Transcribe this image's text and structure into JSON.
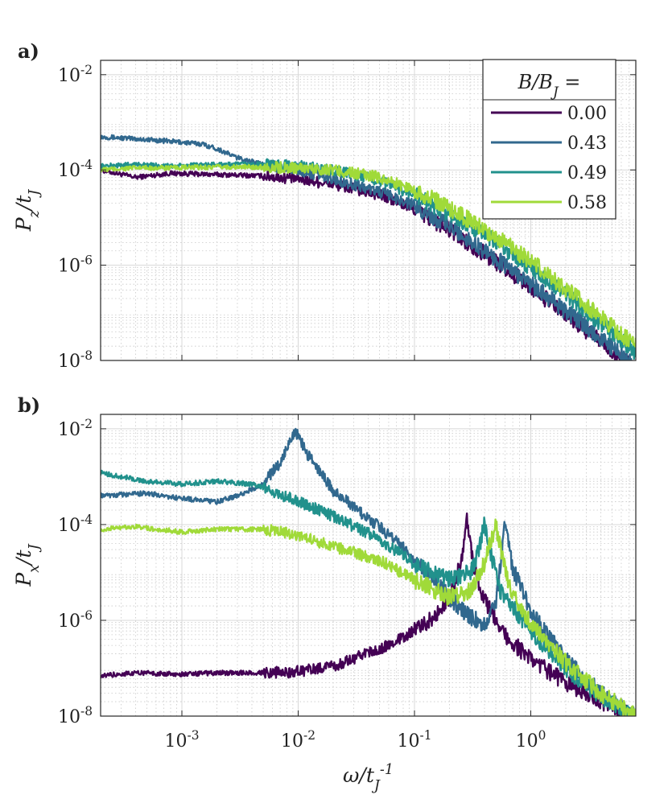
{
  "chart_data": [
    {
      "type": "line",
      "panel_label": "a)",
      "ylabel": "P_z/t_J",
      "x_scale": "log",
      "y_scale": "log",
      "xlim": [
        0.0002,
        8
      ],
      "ylim": [
        1e-08,
        0.02
      ],
      "x_ticks": [
        0.001,
        0.01,
        0.1,
        1
      ],
      "x_tick_labels": [
        "",
        "",
        "",
        ""
      ],
      "y_ticks": [
        1e-08,
        1e-06,
        0.0001,
        0.01
      ],
      "y_tick_labels": [
        "10^-8",
        "10^-6",
        "10^-4",
        "10^-2"
      ],
      "grid": true,
      "legend": {
        "title": "B/B_J =",
        "position": "top-right",
        "entries": [
          "0.00",
          "0.43",
          "0.49",
          "0.58"
        ]
      },
      "series": [
        {
          "name": "0.00",
          "color": "#440154",
          "points": [
            [
              0.0002,
              0.0001
            ],
            [
              0.0004,
              7e-05
            ],
            [
              0.0008,
              8.5e-05
            ],
            [
              0.002,
              8e-05
            ],
            [
              0.005,
              7.5e-05
            ],
            [
              0.01,
              6.5e-05
            ],
            [
              0.02,
              5e-05
            ],
            [
              0.05,
              3e-05
            ],
            [
              0.1,
              1.5e-05
            ],
            [
              0.2,
              5.5e-06
            ],
            [
              0.5,
              1.2e-06
            ],
            [
              1,
              3.5e-07
            ],
            [
              2,
              9e-08
            ],
            [
              4,
              2.5e-08
            ],
            [
              8,
              6e-09
            ]
          ]
        },
        {
          "name": "0.43",
          "color": "#31688e",
          "points": [
            [
              0.0002,
              0.0005
            ],
            [
              0.0004,
              0.00045
            ],
            [
              0.0008,
              0.0004
            ],
            [
              0.0015,
              0.00035
            ],
            [
              0.002,
              0.00028
            ],
            [
              0.003,
              0.00018
            ],
            [
              0.005,
              0.00013
            ],
            [
              0.01,
              0.0001
            ],
            [
              0.02,
              6.5e-05
            ],
            [
              0.05,
              3.5e-05
            ],
            [
              0.1,
              1.8e-05
            ],
            [
              0.2,
              6.5e-06
            ],
            [
              0.5,
              1.4e-06
            ],
            [
              1,
              4e-07
            ],
            [
              2,
              1.1e-07
            ],
            [
              4,
              3e-08
            ],
            [
              8,
              7e-09
            ]
          ]
        },
        {
          "name": "0.49",
          "color": "#21918c",
          "points": [
            [
              0.0002,
              0.00012
            ],
            [
              0.0004,
              0.00013
            ],
            [
              0.0008,
              0.00012
            ],
            [
              0.002,
              0.00013
            ],
            [
              0.005,
              0.00013
            ],
            [
              0.01,
              0.00012
            ],
            [
              0.02,
              0.0001
            ],
            [
              0.05,
              6e-05
            ],
            [
              0.1,
              3e-05
            ],
            [
              0.2,
              1.2e-05
            ],
            [
              0.5,
              3e-06
            ],
            [
              1,
              9e-07
            ],
            [
              2,
              2.5e-07
            ],
            [
              4,
              6e-08
            ],
            [
              8,
              1.5e-08
            ]
          ]
        },
        {
          "name": "0.58",
          "color": "#a0da39",
          "points": [
            [
              0.0002,
              0.0001
            ],
            [
              0.0004,
              0.00011
            ],
            [
              0.0008,
              0.00011
            ],
            [
              0.002,
              0.000115
            ],
            [
              0.005,
              0.000115
            ],
            [
              0.01,
              0.00011
            ],
            [
              0.02,
              0.0001
            ],
            [
              0.05,
              7e-05
            ],
            [
              0.1,
              3.8e-05
            ],
            [
              0.2,
              1.6e-05
            ],
            [
              0.5,
              4e-06
            ],
            [
              1,
              1.2e-06
            ],
            [
              2,
              3.2e-07
            ],
            [
              4,
              8e-08
            ],
            [
              8,
              2e-08
            ]
          ]
        }
      ]
    },
    {
      "type": "line",
      "panel_label": "b)",
      "ylabel": "P_x/t_J",
      "xlabel": "ω/t_J^-1",
      "x_scale": "log",
      "y_scale": "log",
      "xlim": [
        0.0002,
        8
      ],
      "ylim": [
        1e-08,
        0.02
      ],
      "x_ticks": [
        0.001,
        0.01,
        0.1,
        1
      ],
      "x_tick_labels": [
        "10^-3",
        "10^-2",
        "10^-1",
        "10^0"
      ],
      "y_ticks": [
        1e-08,
        1e-06,
        0.0001,
        0.01
      ],
      "y_tick_labels": [
        "10^-8",
        "10^-6",
        "10^-4",
        "10^-2"
      ],
      "grid": true,
      "series": [
        {
          "name": "0.00",
          "color": "#440154",
          "points": [
            [
              0.0002,
              7e-08
            ],
            [
              0.0004,
              8e-08
            ],
            [
              0.001,
              7.5e-08
            ],
            [
              0.002,
              8e-08
            ],
            [
              0.005,
              8e-08
            ],
            [
              0.01,
              8.5e-08
            ],
            [
              0.02,
              1.1e-07
            ],
            [
              0.05,
              2.5e-07
            ],
            [
              0.1,
              6e-07
            ],
            [
              0.15,
              1.2e-06
            ],
            [
              0.2,
              3e-06
            ],
            [
              0.25,
              1.5e-05
            ],
            [
              0.28,
              0.00013
            ],
            [
              0.32,
              1.5e-05
            ],
            [
              0.4,
              2.5e-06
            ],
            [
              0.6,
              5e-07
            ],
            [
              1,
              1.5e-07
            ],
            [
              2,
              5e-08
            ],
            [
              4,
              2e-08
            ],
            [
              8,
              1e-08
            ]
          ]
        },
        {
          "name": "0.43",
          "color": "#31688e",
          "points": [
            [
              0.0002,
              0.0004
            ],
            [
              0.0005,
              0.00045
            ],
            [
              0.001,
              0.00035
            ],
            [
              0.002,
              0.0003
            ],
            [
              0.003,
              0.0004
            ],
            [
              0.005,
              0.0007
            ],
            [
              0.007,
              0.002
            ],
            [
              0.0095,
              0.009
            ],
            [
              0.012,
              0.003
            ],
            [
              0.02,
              0.0005
            ],
            [
              0.05,
              9e-05
            ],
            [
              0.1,
              2e-05
            ],
            [
              0.2,
              3e-06
            ],
            [
              0.3,
              1.2e-06
            ],
            [
              0.4,
              8e-07
            ],
            [
              0.5,
              2e-06
            ],
            [
              0.55,
              1.5e-05
            ],
            [
              0.6,
              0.0001
            ],
            [
              0.7,
              1.2e-05
            ],
            [
              1,
              1.5e-06
            ],
            [
              2,
              1.5e-07
            ],
            [
              4,
              3e-08
            ],
            [
              8,
              1e-08
            ]
          ]
        },
        {
          "name": "0.49",
          "color": "#21918c",
          "points": [
            [
              0.0002,
              0.0012
            ],
            [
              0.0005,
              0.0008
            ],
            [
              0.001,
              0.0007
            ],
            [
              0.002,
              0.0008
            ],
            [
              0.004,
              0.0007
            ],
            [
              0.006,
              0.0005
            ],
            [
              0.01,
              0.0003
            ],
            [
              0.02,
              0.00015
            ],
            [
              0.05,
              5e-05
            ],
            [
              0.1,
              1.5e-05
            ],
            [
              0.2,
              7e-06
            ],
            [
              0.3,
              1e-05
            ],
            [
              0.35,
              2.5e-05
            ],
            [
              0.4,
              0.0001
            ],
            [
              0.45,
              2.5e-05
            ],
            [
              0.55,
              4e-06
            ],
            [
              1,
              6e-07
            ],
            [
              2,
              1e-07
            ],
            [
              4,
              2.5e-08
            ],
            [
              8,
              9e-09
            ]
          ]
        },
        {
          "name": "0.58",
          "color": "#a0da39",
          "points": [
            [
              0.0002,
              8e-05
            ],
            [
              0.0004,
              9e-05
            ],
            [
              0.001,
              7e-05
            ],
            [
              0.002,
              8e-05
            ],
            [
              0.005,
              8e-05
            ],
            [
              0.01,
              6e-05
            ],
            [
              0.02,
              3.5e-05
            ],
            [
              0.05,
              1.8e-05
            ],
            [
              0.1,
              7e-06
            ],
            [
              0.2,
              3e-06
            ],
            [
              0.3,
              4e-06
            ],
            [
              0.4,
              1.5e-05
            ],
            [
              0.5,
              0.0001
            ],
            [
              0.55,
              3e-05
            ],
            [
              0.65,
              5e-06
            ],
            [
              1,
              8e-07
            ],
            [
              2,
              1.3e-07
            ],
            [
              4,
              3e-08
            ],
            [
              8,
              1e-08
            ]
          ]
        }
      ]
    }
  ]
}
